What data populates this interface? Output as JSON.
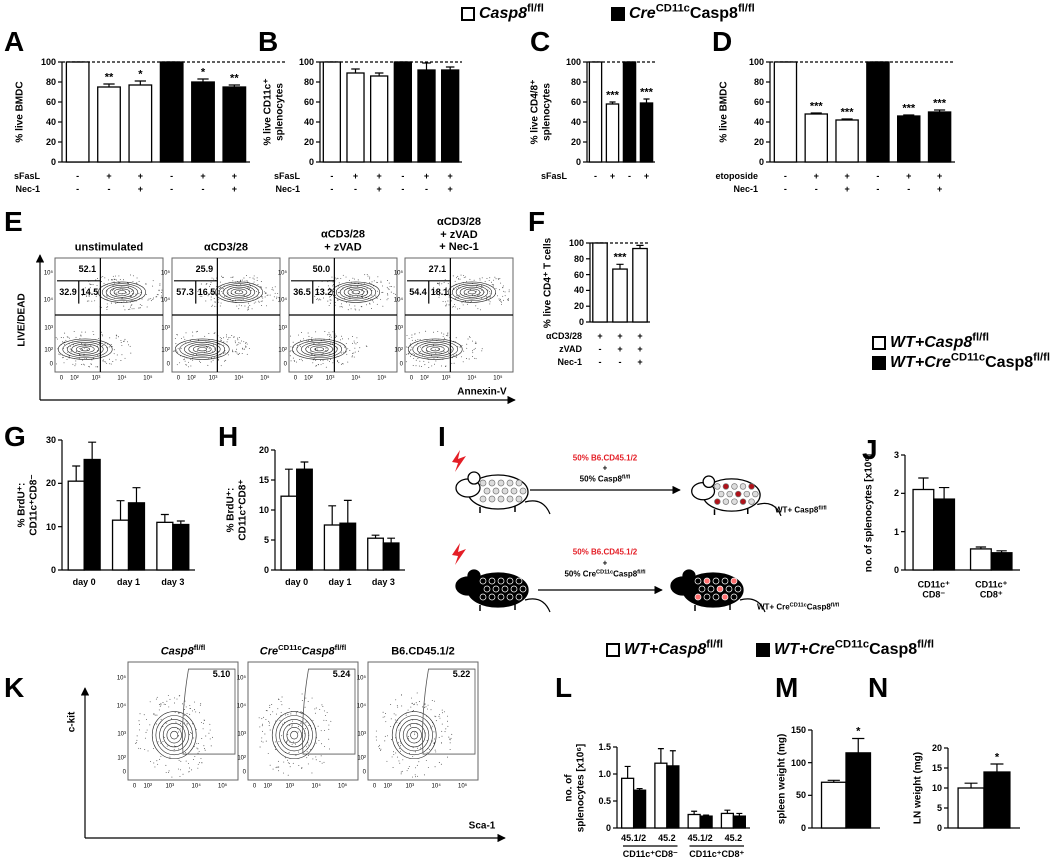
{
  "chart_data": [
    {
      "type": "legend",
      "items": [
        {
          "name": [
            "Casp8",
            "fl/fl"
          ],
          "color": "#ffffff"
        },
        {
          "name": [
            "Cre",
            "CD11c",
            "Casp8",
            "fl/fl"
          ],
          "color": "#000000"
        }
      ]
    },
    {
      "type": "bar",
      "label": "A",
      "ylabel": "% live BMDC",
      "ylim": [
        0,
        100
      ],
      "yticks": [
        0,
        20,
        40,
        60,
        80,
        100
      ],
      "hline": 100,
      "values": [
        100,
        75,
        77,
        100,
        80,
        75
      ],
      "errors": [
        0,
        3,
        4,
        0,
        3,
        2
      ],
      "colors": [
        "#ffffff",
        "#ffffff",
        "#ffffff",
        "#000000",
        "#000000",
        "#000000"
      ],
      "annotations": [
        null,
        "**",
        "*",
        null,
        "*",
        "**"
      ],
      "conditions": [
        {
          "name": "sFasL",
          "signs": [
            "-",
            "+",
            "+",
            "-",
            "+",
            "+"
          ]
        },
        {
          "name": "Nec-1",
          "signs": [
            "-",
            "-",
            "+",
            "-",
            "-",
            "+"
          ]
        }
      ]
    },
    {
      "type": "bar",
      "label": "B",
      "ylabel": "% live CD11c⁺\nsplenocytes",
      "ylim": [
        0,
        100
      ],
      "yticks": [
        0,
        20,
        40,
        60,
        80,
        100
      ],
      "hline": 100,
      "values": [
        100,
        89,
        86,
        100,
        92,
        92
      ],
      "errors": [
        0,
        4,
        3,
        0,
        7,
        3
      ],
      "colors": [
        "#ffffff",
        "#ffffff",
        "#ffffff",
        "#000000",
        "#000000",
        "#000000"
      ],
      "annotations": [
        null,
        null,
        null,
        null,
        null,
        null
      ],
      "conditions": [
        {
          "name": "sFasL",
          "signs": [
            "-",
            "+",
            "+",
            "-",
            "+",
            "+"
          ]
        },
        {
          "name": "Nec-1",
          "signs": [
            "-",
            "-",
            "+",
            "-",
            "-",
            "+"
          ]
        }
      ]
    },
    {
      "type": "bar",
      "label": "C",
      "ylabel": "% live CD4/8⁺\nsplenocytes",
      "ylim": [
        0,
        100
      ],
      "yticks": [
        0,
        20,
        40,
        60,
        80,
        100
      ],
      "hline": 100,
      "values": [
        100,
        58,
        100,
        59
      ],
      "errors": [
        0,
        2,
        0,
        4
      ],
      "colors": [
        "#ffffff",
        "#ffffff",
        "#000000",
        "#000000"
      ],
      "annotations": [
        null,
        "***",
        null,
        "***"
      ],
      "conditions": [
        {
          "name": "sFasL",
          "signs": [
            "-",
            "+",
            "-",
            "+"
          ]
        }
      ]
    },
    {
      "type": "bar",
      "label": "D",
      "ylabel": "% live BMDC",
      "ylim": [
        0,
        100
      ],
      "yticks": [
        0,
        20,
        40,
        60,
        80,
        100
      ],
      "hline": 100,
      "values": [
        100,
        48,
        42,
        100,
        46,
        50
      ],
      "errors": [
        0,
        1,
        1,
        0,
        1,
        2
      ],
      "colors": [
        "#ffffff",
        "#ffffff",
        "#ffffff",
        "#000000",
        "#000000",
        "#000000"
      ],
      "annotations": [
        null,
        "***",
        "***",
        null,
        "***",
        "***"
      ],
      "conditions": [
        {
          "name": "etoposide",
          "signs": [
            "-",
            "+",
            "+",
            "-",
            "+",
            "+"
          ]
        },
        {
          "name": "Nec-1",
          "signs": [
            "-",
            "-",
            "+",
            "-",
            "-",
            "+"
          ]
        }
      ]
    },
    {
      "type": "flow",
      "label": "E",
      "xlabel": "Annexin-V",
      "ylabel": "LIVE/DEAD",
      "ticks": [
        "0",
        "10²",
        "10³",
        "10⁴",
        "10⁵"
      ],
      "plots": [
        {
          "title": "unstimulated",
          "values": [
            52.1,
            32.9,
            14.5
          ],
          "value_labels": [
            "52.1",
            "32.9",
            "14.5"
          ]
        },
        {
          "title": "αCD3/28",
          "values": [
            25.9,
            57.3,
            16.5
          ],
          "value_labels": [
            "25.9",
            "57.3",
            "16.5"
          ]
        },
        {
          "title": "αCD3/28\n+ zVAD",
          "values": [
            50.0,
            36.5,
            13.2
          ],
          "value_labels": [
            "50.0",
            "36.5",
            "13.2"
          ]
        },
        {
          "title": "αCD3/28\n+ zVAD\n+ Nec-1",
          "values": [
            27.1,
            54.4,
            18.1
          ],
          "value_labels": [
            "27.1",
            "54.4",
            "18.1"
          ]
        }
      ]
    },
    {
      "type": "bar",
      "label": "F",
      "ylabel": "% live CD4⁺ T cells",
      "ylim": [
        0,
        100
      ],
      "yticks": [
        0,
        20,
        40,
        60,
        80,
        100
      ],
      "hline": 100,
      "values": [
        100,
        67,
        93
      ],
      "errors": [
        0,
        6,
        4
      ],
      "colors": [
        "#ffffff",
        "#ffffff",
        "#ffffff"
      ],
      "annotations": [
        null,
        "***",
        null
      ],
      "conditions": [
        {
          "name": "αCD3/28",
          "signs": [
            "+",
            "+",
            "+"
          ]
        },
        {
          "name": "zVAD",
          "signs": [
            "-",
            "+",
            "+"
          ]
        },
        {
          "name": "Nec-1",
          "signs": [
            "-",
            "-",
            "+"
          ]
        }
      ]
    },
    {
      "type": "grouped_bar",
      "label": "G",
      "ylabel": "% BrdU⁺:\nCD11c⁺CD8⁻",
      "ylim": [
        0,
        30
      ],
      "yticks": [
        0,
        10,
        20,
        30
      ],
      "categories": [
        "day 0",
        "day 1",
        "day 3"
      ],
      "series": [
        {
          "color": "#ffffff",
          "values": [
            20.5,
            11.5,
            11
          ],
          "errors": [
            3.5,
            4.5,
            1.8
          ]
        },
        {
          "color": "#000000",
          "values": [
            25.5,
            15.5,
            10.5
          ],
          "errors": [
            4,
            3.5,
            0.8
          ]
        }
      ]
    },
    {
      "type": "grouped_bar",
      "label": "H",
      "ylabel": "% BrdU⁺:\nCD11c⁺CD8⁺",
      "ylim": [
        0,
        20
      ],
      "yticks": [
        0,
        5,
        10,
        15,
        20
      ],
      "categories": [
        "day 0",
        "day 1",
        "day 3"
      ],
      "series": [
        {
          "color": "#ffffff",
          "values": [
            12.3,
            7.5,
            5.3
          ],
          "errors": [
            4.5,
            3.2,
            0.5
          ]
        },
        {
          "color": "#000000",
          "values": [
            16.8,
            7.8,
            4.5
          ],
          "errors": [
            1.2,
            3.8,
            0.8
          ]
        }
      ]
    },
    {
      "type": "diagram",
      "label": "I",
      "labels": [
        {
          "text": "50% B6.CD45.1/2",
          "color": "#e41e26"
        },
        {
          "text": "+",
          "color": "#000000"
        },
        {
          "text": [
            "50% Casp8",
            "fl/fl"
          ],
          "color": "#000000"
        },
        {
          "text": [
            "WT+ Casp8",
            "fl/fl"
          ],
          "color": "#000000"
        },
        {
          "text": "50% B6.CD45.1/2",
          "color": "#e41e26"
        },
        {
          "text": "+",
          "color": "#000000"
        },
        {
          "text": [
            "50% Cre",
            "CD11c",
            "Casp8",
            "fl/fl"
          ],
          "color": "#000000"
        },
        {
          "text": [
            "WT+ Cre",
            "CD11c",
            "Casp8",
            "fl/fl"
          ],
          "color": "#000000"
        }
      ]
    },
    {
      "type": "legend",
      "items": [
        {
          "name": [
            "WT+Casp8",
            "fl/fl"
          ],
          "color": "#ffffff"
        },
        {
          "name": [
            "WT+Cre",
            "CD11c",
            "Casp8",
            "fl/fl"
          ],
          "color": "#000000"
        }
      ]
    },
    {
      "type": "grouped_bar",
      "label": "J",
      "ylabel": "no. of splenocytes [x10⁶]",
      "ylim": [
        0,
        3
      ],
      "yticks": [
        0,
        1,
        2,
        3
      ],
      "categories": [
        "CD11c⁺\nCD8⁻",
        "CD11c⁺\nCD8⁺"
      ],
      "series": [
        {
          "color": "#ffffff",
          "values": [
            2.1,
            0.55
          ],
          "errors": [
            0.3,
            0.05
          ]
        },
        {
          "color": "#000000",
          "values": [
            1.85,
            0.45
          ],
          "errors": [
            0.3,
            0.05
          ]
        }
      ]
    },
    {
      "type": "flow",
      "label": "K",
      "xlabel": "Sca-1",
      "ylabel": "c-kit",
      "ticks": [
        "0",
        "10²",
        "10³",
        "10⁴",
        "10⁵"
      ],
      "plots": [
        {
          "title": [
            "Casp8",
            "fl/fl"
          ],
          "values": [
            5.1
          ],
          "value_labels": [
            "5.10"
          ]
        },
        {
          "title": [
            "Cre",
            "CD11c",
            "Casp8",
            "fl/fl"
          ],
          "values": [
            5.24
          ],
          "value_labels": [
            "5.24"
          ]
        },
        {
          "title": "B6.CD45.1/2",
          "values": [
            5.22
          ],
          "value_labels": [
            "5.22"
          ]
        }
      ]
    },
    {
      "type": "legend",
      "items": [
        {
          "name": [
            "WT+Casp8",
            "fl/fl"
          ],
          "color": "#ffffff"
        },
        {
          "name": [
            "WT+Cre",
            "CD11c",
            "Casp8",
            "fl/fl"
          ],
          "color": "#000000"
        }
      ]
    },
    {
      "type": "grouped_bar",
      "label": "L",
      "ylabel": "no. of\nsplenocytes [x10⁶]",
      "ylim": [
        0,
        1.5
      ],
      "yticks": [
        0,
        0.5,
        {
          "value": 1,
          "label": "1.0"
        },
        1.5
      ],
      "categories": [
        "45.1/2",
        "45.2",
        "45.1/2",
        "45.2"
      ],
      "groups": [
        "CD11c⁺CD8⁻",
        "CD11c⁺CD8⁺"
      ],
      "series": [
        {
          "color": "#ffffff",
          "values": [
            0.92,
            1.2,
            0.25,
            0.27
          ],
          "errors": [
            0.22,
            0.27,
            0.06,
            0.06
          ]
        },
        {
          "color": "#000000",
          "values": [
            0.7,
            1.15,
            0.22,
            0.22
          ],
          "errors": [
            0.03,
            0.28,
            0.02,
            0.05
          ]
        }
      ]
    },
    {
      "type": "grouped_bar",
      "label": "M",
      "ylabel": "spleen weight (mg)",
      "ylim": [
        0,
        150
      ],
      "yticks": [
        0,
        50,
        100,
        150
      ],
      "categories": [
        null
      ],
      "series": [
        {
          "color": "#ffffff",
          "values": [
            70
          ],
          "errors": [
            3
          ]
        },
        {
          "color": "#000000",
          "values": [
            115
          ],
          "errors": [
            22
          ],
          "annotations": [
            "*"
          ]
        }
      ]
    },
    {
      "type": "grouped_bar",
      "label": "N",
      "ylabel": "LN weight (mg)",
      "ylim": [
        0,
        20
      ],
      "yticks": [
        0,
        5,
        10,
        15,
        20
      ],
      "categories": [
        null
      ],
      "series": [
        {
          "color": "#ffffff",
          "values": [
            10
          ],
          "errors": [
            1.2
          ]
        },
        {
          "color": "#000000",
          "values": [
            14
          ],
          "errors": [
            2
          ],
          "annotations": [
            "*"
          ]
        }
      ]
    }
  ]
}
